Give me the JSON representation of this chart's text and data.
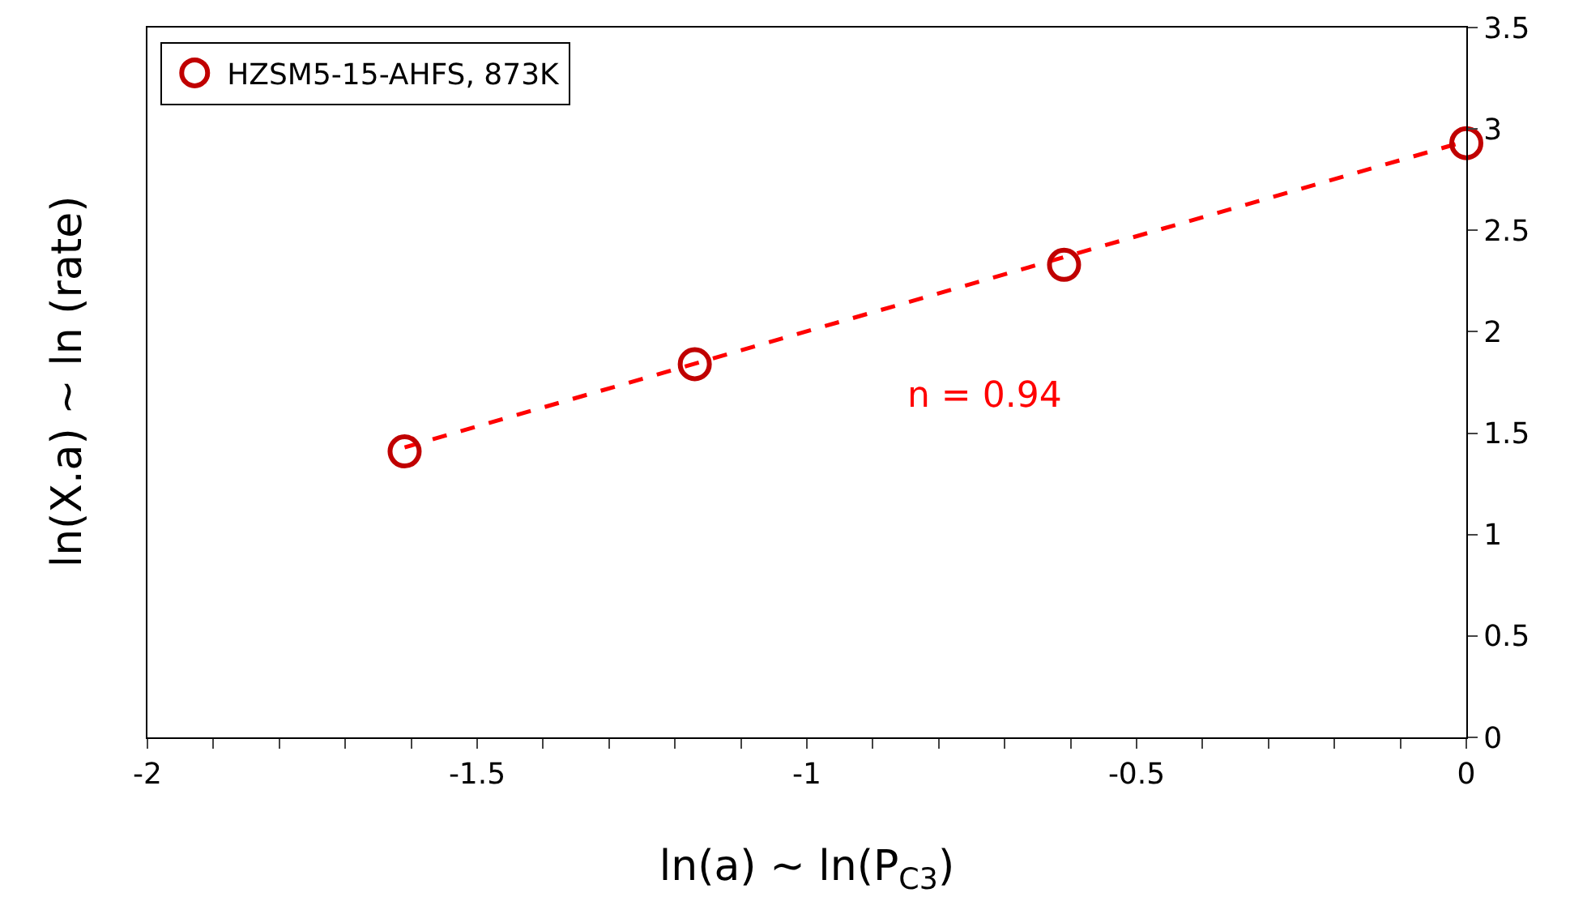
{
  "chart_data": {
    "type": "scatter",
    "xlabel": "ln(a) ~ ln(P$_{C3}$)",
    "ylabel": "ln(X.a) ~ ln (rate)",
    "series": [
      {
        "type": "line",
        "color": "#ff0000",
        "line_style": "dashed",
        "marker": "none",
        "x": [
          -1.61,
          0
        ],
        "values": [
          1.43,
          2.94
        ]
      },
      {
        "name": "HZSM5-15-AHFS, 873K",
        "color": "#c00000",
        "marker": "circle",
        "x": [
          -1.61,
          -1.17,
          -0.61,
          0
        ],
        "values": [
          1.41,
          1.84,
          2.33,
          2.93
        ]
      }
    ],
    "annotations": [
      "n = 0.94"
    ],
    "xlim": [
      -2,
      0
    ],
    "ylim": [
      0,
      3.5
    ],
    "xticks": [
      -2,
      {
        "value": -1.9,
        "label": null
      },
      {
        "value": -1.8,
        "label": null
      },
      {
        "value": -1.7,
        "label": null
      },
      {
        "value": -1.6,
        "label": null
      },
      -1.5,
      {
        "value": -1.4,
        "label": null
      },
      {
        "value": -1.3,
        "label": null
      },
      {
        "value": -1.2,
        "label": null
      },
      {
        "value": -1.1,
        "label": null
      },
      -1,
      {
        "value": -0.9,
        "label": null
      },
      {
        "value": -0.8,
        "label": null
      },
      {
        "value": -0.7,
        "label": null
      },
      {
        "value": -0.6,
        "label": null
      },
      -0.5,
      {
        "value": -0.4,
        "label": null
      },
      {
        "value": -0.3,
        "label": null
      },
      {
        "value": -0.2,
        "label": null
      },
      {
        "value": -0.1,
        "label": null
      },
      0
    ],
    "yticks": [
      0,
      0.5,
      1,
      1.5,
      2,
      2.5,
      3,
      3.5
    ],
    "grid": false,
    "legend": "top left"
  }
}
